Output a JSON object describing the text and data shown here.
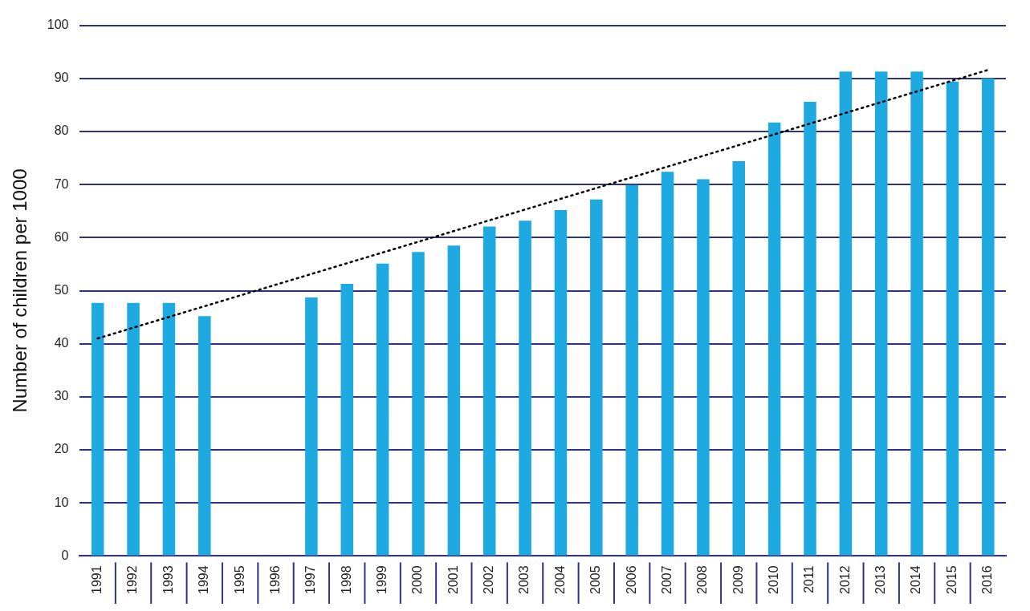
{
  "chart_data": {
    "type": "bar",
    "ylabel": "Number of children per 1000",
    "categories": [
      "1991",
      "1992",
      "1993",
      "1994",
      "1995",
      "1996",
      "1997",
      "1998",
      "1999",
      "2000",
      "2001",
      "2002",
      "2003",
      "2004",
      "2005",
      "2006",
      "2007",
      "2008",
      "2009",
      "2010",
      "2011",
      "2012",
      "2013",
      "2014",
      "2015",
      "2016"
    ],
    "series": [
      {
        "color": "#1eaae1",
        "values": [
          47.7,
          47.7,
          47.7,
          45.2,
          null,
          null,
          48.7,
          51.3,
          55.1,
          57.3,
          58.5,
          62.1,
          63.2,
          65.2,
          67.2,
          69.9,
          72.4,
          71.0,
          74.4,
          81.7,
          85.6,
          91.3,
          91.3,
          91.3,
          89.4,
          90.0
        ]
      },
      {
        "type": "line",
        "color": "#000000",
        "line_style": "dotted",
        "marker": "none",
        "values": [
          41.0,
          null,
          null,
          null,
          null,
          null,
          null,
          null,
          null,
          null,
          null,
          null,
          null,
          null,
          null,
          null,
          null,
          null,
          null,
          null,
          null,
          null,
          null,
          null,
          null,
          91.6
        ]
      }
    ],
    "ylim": [
      0,
      100
    ],
    "yticks": [
      0,
      10,
      20,
      30,
      40,
      50,
      60,
      70,
      80,
      90,
      100
    ],
    "grid": "y",
    "legend": false
  }
}
